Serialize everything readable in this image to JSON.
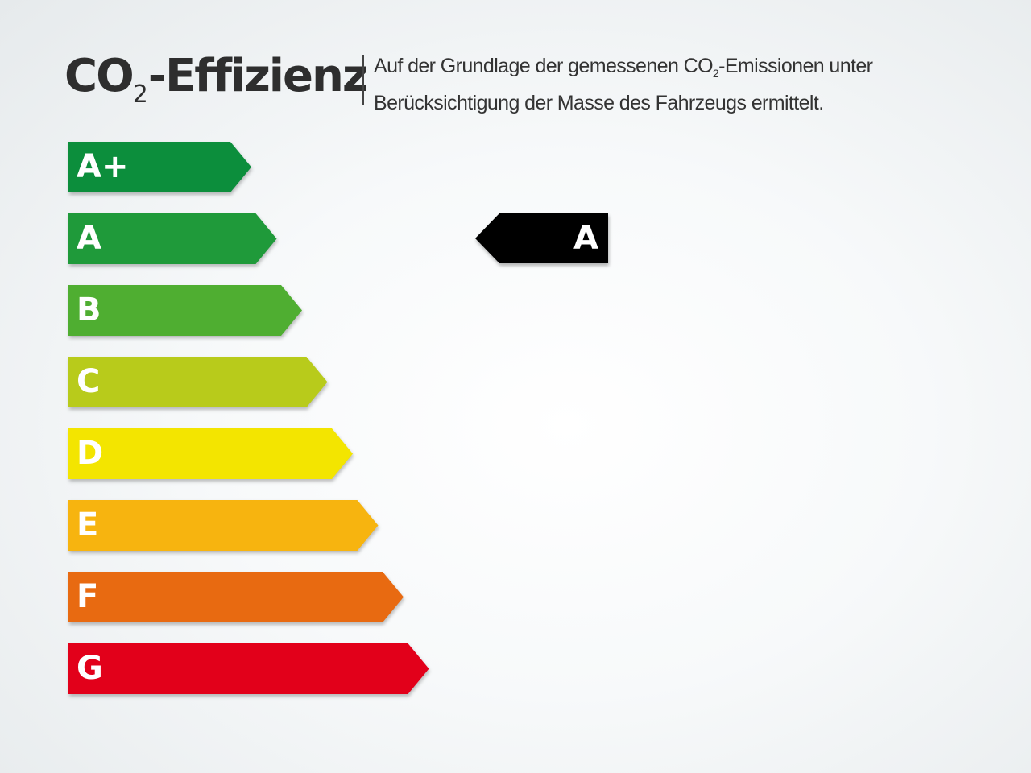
{
  "header": {
    "title_prefix": "CO",
    "title_sub": "2",
    "title_suffix": "-Effizienz",
    "desc_line1_a": "Auf der Grundlage der gemessenen CO",
    "desc_line1_sub": "2",
    "desc_line1_b": "-Emissionen unter",
    "desc_line2": "Berücksichtigung der Masse des Fahrzeugs ermittelt."
  },
  "classes": [
    {
      "label": "A+",
      "color": "#0c8e3c"
    },
    {
      "label": "A",
      "color": "#1f9a3a"
    },
    {
      "label": "B",
      "color": "#4fae31"
    },
    {
      "label": "C",
      "color": "#b8cb1b"
    },
    {
      "label": "D",
      "color": "#f3e500"
    },
    {
      "label": "E",
      "color": "#f7b40f"
    },
    {
      "label": "F",
      "color": "#e86a11"
    },
    {
      "label": "G",
      "color": "#e2001a"
    }
  ],
  "rating": {
    "label": "A",
    "color": "#000000"
  }
}
